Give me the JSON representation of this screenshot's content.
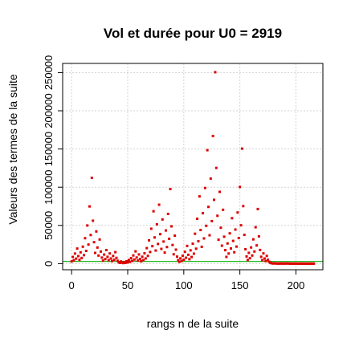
{
  "chart_data": {
    "type": "scatter",
    "title": "Vol et durée pour U0 = 2919",
    "xlabel": "rangs n de la suite",
    "ylabel": "Valeurs des termes de la suite",
    "xlim": [
      -8,
      224
    ],
    "ylim": [
      -8000,
      262000
    ],
    "xticks": [
      0,
      50,
      100,
      150,
      200
    ],
    "xtick_labels": [
      "0",
      "50",
      "100",
      "150",
      "200"
    ],
    "yticks": [
      0,
      50000,
      100000,
      150000,
      200000,
      250000
    ],
    "ytick_labels": [
      "0",
      "50000",
      "100000",
      "150000",
      "200000",
      "250000"
    ],
    "grid": true,
    "reference_line": {
      "y": 2919,
      "color": "#22bb22"
    },
    "series_color": "#dd0000",
    "connector_color": "#000080",
    "series": [
      {
        "values": [
          2919,
          8758,
          4379,
          13138,
          6569,
          19708,
          9854,
          4927,
          14782,
          7391,
          22174,
          11087,
          33262,
          16631,
          49894,
          24947,
          74842,
          37421,
          112264,
          56132,
          28066,
          14033,
          42100,
          21050,
          10525,
          31576,
          15788,
          7894,
          3947,
          11842,
          5921,
          17764,
          8882,
          4441,
          13324,
          6662,
          3331,
          9994,
          4997,
          14992,
          7496,
          3748,
          1874,
          937,
          2812,
          1406,
          703,
          2110,
          1055,
          3166,
          1583,
          4750,
          2375,
          7126,
          3563,
          10690,
          5345,
          16036,
          8018,
          4009,
          12028,
          6014,
          3007,
          9022,
          4511,
          13534,
          6767,
          20302,
          10151,
          30454,
          15227,
          45682,
          22841,
          68524,
          34262,
          17131,
          51394,
          25697,
          77092,
          38546,
          19273,
          57820,
          28910,
          14455,
          43366,
          21683,
          65050,
          32525,
          97576,
          48788,
          24394,
          12197,
          36592,
          18296,
          9148,
          4574,
          2287,
          6862,
          3431,
          10294,
          5147,
          15442,
          7721,
          23164,
          11582,
          5791,
          17374,
          8687,
          26062,
          13031,
          39094,
          19547,
          58642,
          29321,
          87964,
          43982,
          21991,
          65974,
          32987,
          98962,
          49481,
          148444,
          74222,
          37111,
          111334,
          55667,
          167002,
          83501,
          250504,
          125252,
          62626,
          31313,
          93940,
          46970,
          23485,
          70456,
          35228,
          17614,
          8807,
          26422,
          13211,
          39634,
          19817,
          59452,
          29726,
          14863,
          44590,
          22295,
          66886,
          33443,
          100330,
          50165,
          150496,
          75248,
          37624,
          18812,
          9406,
          4703,
          14110,
          7055,
          21166,
          10583,
          31750,
          15875,
          47626,
          23813,
          71440,
          35720,
          17860,
          8930,
          4465,
          13396,
          6698,
          3349,
          10048,
          5024,
          2512,
          1256,
          628,
          314,
          157,
          472,
          236,
          118,
          59,
          178,
          89,
          268,
          134,
          67,
          202,
          101,
          304,
          152,
          76,
          38,
          19,
          58,
          29,
          88,
          44,
          22,
          11,
          34,
          17,
          52,
          26,
          13,
          40,
          20,
          10,
          5,
          16,
          8,
          4,
          2,
          1
        ]
      }
    ]
  }
}
